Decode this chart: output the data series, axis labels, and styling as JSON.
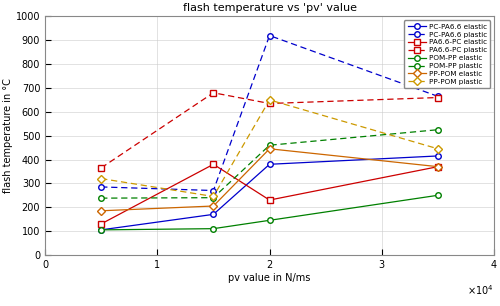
{
  "title": "flash temperature vs 'pv' value",
  "xlabel": "pv value in N/ms",
  "ylabel": "flash temperature in °C",
  "xlim": [
    0,
    40000.0
  ],
  "ylim": [
    0,
    1000
  ],
  "xticks": [
    0,
    10000.0,
    20000.0,
    30000.0,
    40000.0
  ],
  "xtick_labels": [
    "0",
    "1",
    "2",
    "3",
    "4"
  ],
  "yticks": [
    0,
    100,
    200,
    300,
    400,
    500,
    600,
    700,
    800,
    900,
    1000
  ],
  "series": [
    {
      "label": "PC-PA6.6 elastic",
      "color": "#0000CC",
      "linestyle": "-",
      "marker": "o",
      "markerfacecolor": "white",
      "dashed": false,
      "x": [
        5000,
        15000,
        20000,
        35000
      ],
      "y": [
        105,
        170,
        380,
        415
      ]
    },
    {
      "label": "PC-PA6.6 plastic",
      "color": "#0000CC",
      "linestyle": "--",
      "marker": "o",
      "markerfacecolor": "white",
      "dashed": true,
      "x": [
        5000,
        15000,
        20000,
        35000
      ],
      "y": [
        285,
        270,
        920,
        665
      ]
    },
    {
      "label": "PA6.6-PC elastic",
      "color": "#CC0000",
      "linestyle": "-",
      "marker": "s",
      "markerfacecolor": "white",
      "dashed": false,
      "x": [
        5000,
        15000,
        20000,
        35000
      ],
      "y": [
        130,
        380,
        230,
        370
      ]
    },
    {
      "label": "PA6.6-PC plastic",
      "color": "#CC0000",
      "linestyle": "--",
      "marker": "s",
      "markerfacecolor": "white",
      "dashed": true,
      "x": [
        5000,
        15000,
        20000,
        35000
      ],
      "y": [
        365,
        680,
        635,
        660
      ]
    },
    {
      "label": "POM-PP elastic",
      "color": "#008000",
      "linestyle": "-",
      "marker": "o",
      "markerfacecolor": "white",
      "dashed": false,
      "x": [
        5000,
        15000,
        20000,
        35000
      ],
      "y": [
        105,
        110,
        145,
        250
      ]
    },
    {
      "label": "POM-PP plastic",
      "color": "#008000",
      "linestyle": "--",
      "marker": "o",
      "markerfacecolor": "white",
      "dashed": true,
      "x": [
        5000,
        15000,
        20000,
        35000
      ],
      "y": [
        238,
        240,
        460,
        525
      ]
    },
    {
      "label": "PP-POM elastic",
      "color": "#CC6600",
      "linestyle": "-",
      "marker": "D",
      "markerfacecolor": "white",
      "dashed": false,
      "x": [
        5000,
        15000,
        20000,
        35000
      ],
      "y": [
        185,
        205,
        445,
        370
      ]
    },
    {
      "label": "PP-POM plastic",
      "color": "#CC9900",
      "linestyle": "--",
      "marker": "D",
      "markerfacecolor": "white",
      "dashed": true,
      "x": [
        5000,
        15000,
        20000,
        35000
      ],
      "y": [
        320,
        245,
        650,
        445
      ]
    }
  ]
}
